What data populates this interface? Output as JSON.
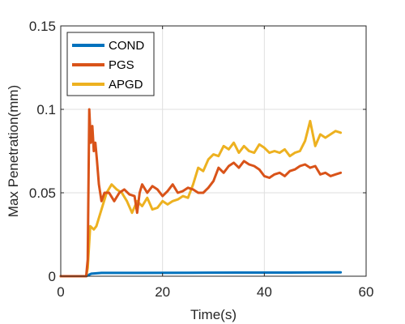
{
  "chart_data": {
    "type": "line",
    "title": "",
    "xlabel": "Time(s)",
    "ylabel": "Max Penetration(mm)",
    "xlim": [
      0,
      60
    ],
    "ylim": [
      0,
      0.15
    ],
    "x_ticks": [
      0,
      20,
      40,
      60
    ],
    "x_tick_labels": [
      "0",
      "20",
      "40",
      "60"
    ],
    "y_ticks": [
      0,
      0.05,
      0.1,
      0.15
    ],
    "y_tick_labels": [
      "0",
      "0.05",
      "0.1",
      "0.15"
    ],
    "grid": true,
    "legend_position": "top-left",
    "series": [
      {
        "name": "COND",
        "color": "#0072BD",
        "x": [
          0,
          5,
          5.3,
          6,
          8,
          15,
          25,
          35,
          45,
          55
        ],
        "y": [
          0,
          0,
          0.0005,
          0.0015,
          0.002,
          0.002,
          0.0021,
          0.0022,
          0.0022,
          0.0023
        ]
      },
      {
        "name": "PGS",
        "color": "#D95319",
        "x": [
          0,
          5,
          5.3,
          5.6,
          5.9,
          6.2,
          6.5,
          6.8,
          7.1,
          7.5,
          8,
          8.6,
          9.5,
          10.5,
          11.5,
          12.5,
          13.5,
          14.5,
          15,
          15.5,
          16,
          17,
          18,
          19,
          20,
          21,
          22,
          23,
          24,
          25,
          26,
          27,
          28,
          29,
          30,
          31,
          32,
          33,
          34,
          35,
          36,
          37,
          38,
          39,
          40,
          41,
          42,
          43,
          44,
          45,
          46,
          47,
          48,
          49,
          50,
          51,
          52,
          53,
          54,
          55
        ],
        "y": [
          0,
          0,
          0.01,
          0.1,
          0.08,
          0.09,
          0.075,
          0.08,
          0.07,
          0.055,
          0.045,
          0.05,
          0.05,
          0.045,
          0.05,
          0.052,
          0.049,
          0.048,
          0.038,
          0.05,
          0.055,
          0.05,
          0.054,
          0.052,
          0.048,
          0.051,
          0.055,
          0.05,
          0.051,
          0.053,
          0.052,
          0.05,
          0.05,
          0.053,
          0.057,
          0.065,
          0.062,
          0.066,
          0.068,
          0.065,
          0.069,
          0.067,
          0.066,
          0.064,
          0.06,
          0.059,
          0.061,
          0.062,
          0.06,
          0.063,
          0.064,
          0.066,
          0.067,
          0.065,
          0.066,
          0.061,
          0.062,
          0.06,
          0.061,
          0.062
        ]
      },
      {
        "name": "APGD",
        "color": "#EDB120",
        "x": [
          0,
          5,
          5.3,
          5.8,
          6.5,
          7,
          8,
          9,
          10,
          11,
          12,
          13,
          14,
          15,
          16,
          17,
          18,
          19,
          20,
          21,
          22,
          23,
          24,
          25,
          26,
          27,
          28,
          29,
          30,
          31,
          32,
          33,
          34,
          35,
          36,
          37,
          38,
          39,
          40,
          41,
          42,
          43,
          44,
          45,
          46,
          47,
          48,
          49,
          50,
          51,
          52,
          53,
          54,
          55
        ],
        "y": [
          0,
          0,
          0.005,
          0.03,
          0.028,
          0.03,
          0.04,
          0.05,
          0.055,
          0.052,
          0.05,
          0.045,
          0.038,
          0.045,
          0.042,
          0.047,
          0.04,
          0.041,
          0.045,
          0.043,
          0.045,
          0.046,
          0.048,
          0.047,
          0.055,
          0.065,
          0.063,
          0.07,
          0.073,
          0.072,
          0.078,
          0.076,
          0.08,
          0.074,
          0.078,
          0.075,
          0.074,
          0.079,
          0.077,
          0.074,
          0.075,
          0.074,
          0.076,
          0.072,
          0.074,
          0.075,
          0.081,
          0.093,
          0.078,
          0.085,
          0.083,
          0.085,
          0.087,
          0.086
        ]
      }
    ]
  }
}
